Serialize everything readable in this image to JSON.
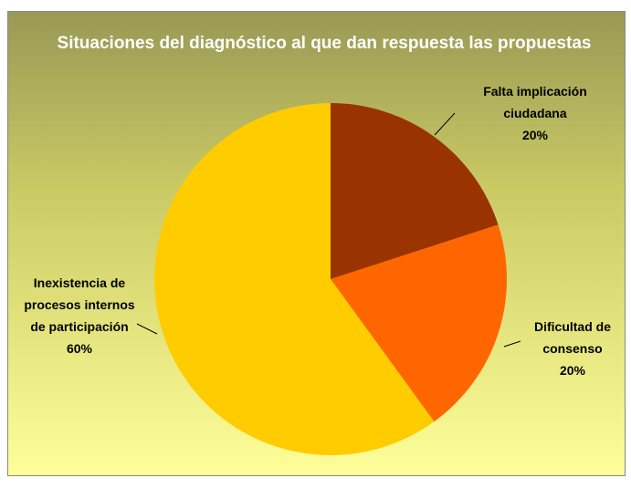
{
  "chart_data": {
    "type": "pie",
    "title": "Situaciones del diagnóstico al que dan respuesta las propuestas",
    "categories": [
      "Falta implicación ciudadana",
      "Dificultad de consenso",
      "Inexistencia de procesos internos de participación"
    ],
    "values": [
      20,
      20,
      60
    ],
    "value_labels": [
      "20%",
      "20%",
      "60%"
    ],
    "colors": [
      "#993300",
      "#ff6600",
      "#ffcc00"
    ]
  }
}
